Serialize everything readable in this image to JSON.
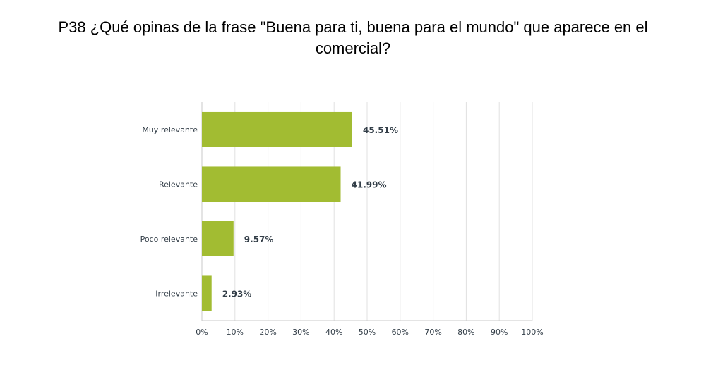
{
  "chart_data": {
    "type": "bar",
    "orientation": "horizontal",
    "title": "P38 ¿Qué opinas de la frase \"Buena para ti, buena para el mundo\" que aparece en el comercial?",
    "categories": [
      "Muy relevante",
      "Relevante",
      "Poco relevante",
      "Irrelevante"
    ],
    "values": [
      45.51,
      41.99,
      9.57,
      2.93
    ],
    "value_labels": [
      "45.51%",
      "41.99%",
      "9.57%",
      "2.93%"
    ],
    "xlim": [
      0,
      100
    ],
    "x_ticks": [
      "0%",
      "10%",
      "20%",
      "30%",
      "40%",
      "50%",
      "60%",
      "70%",
      "80%",
      "90%",
      "100%"
    ],
    "grid": true,
    "bar_color": "#a2bc32",
    "grid_color": "#e0e0e0"
  }
}
